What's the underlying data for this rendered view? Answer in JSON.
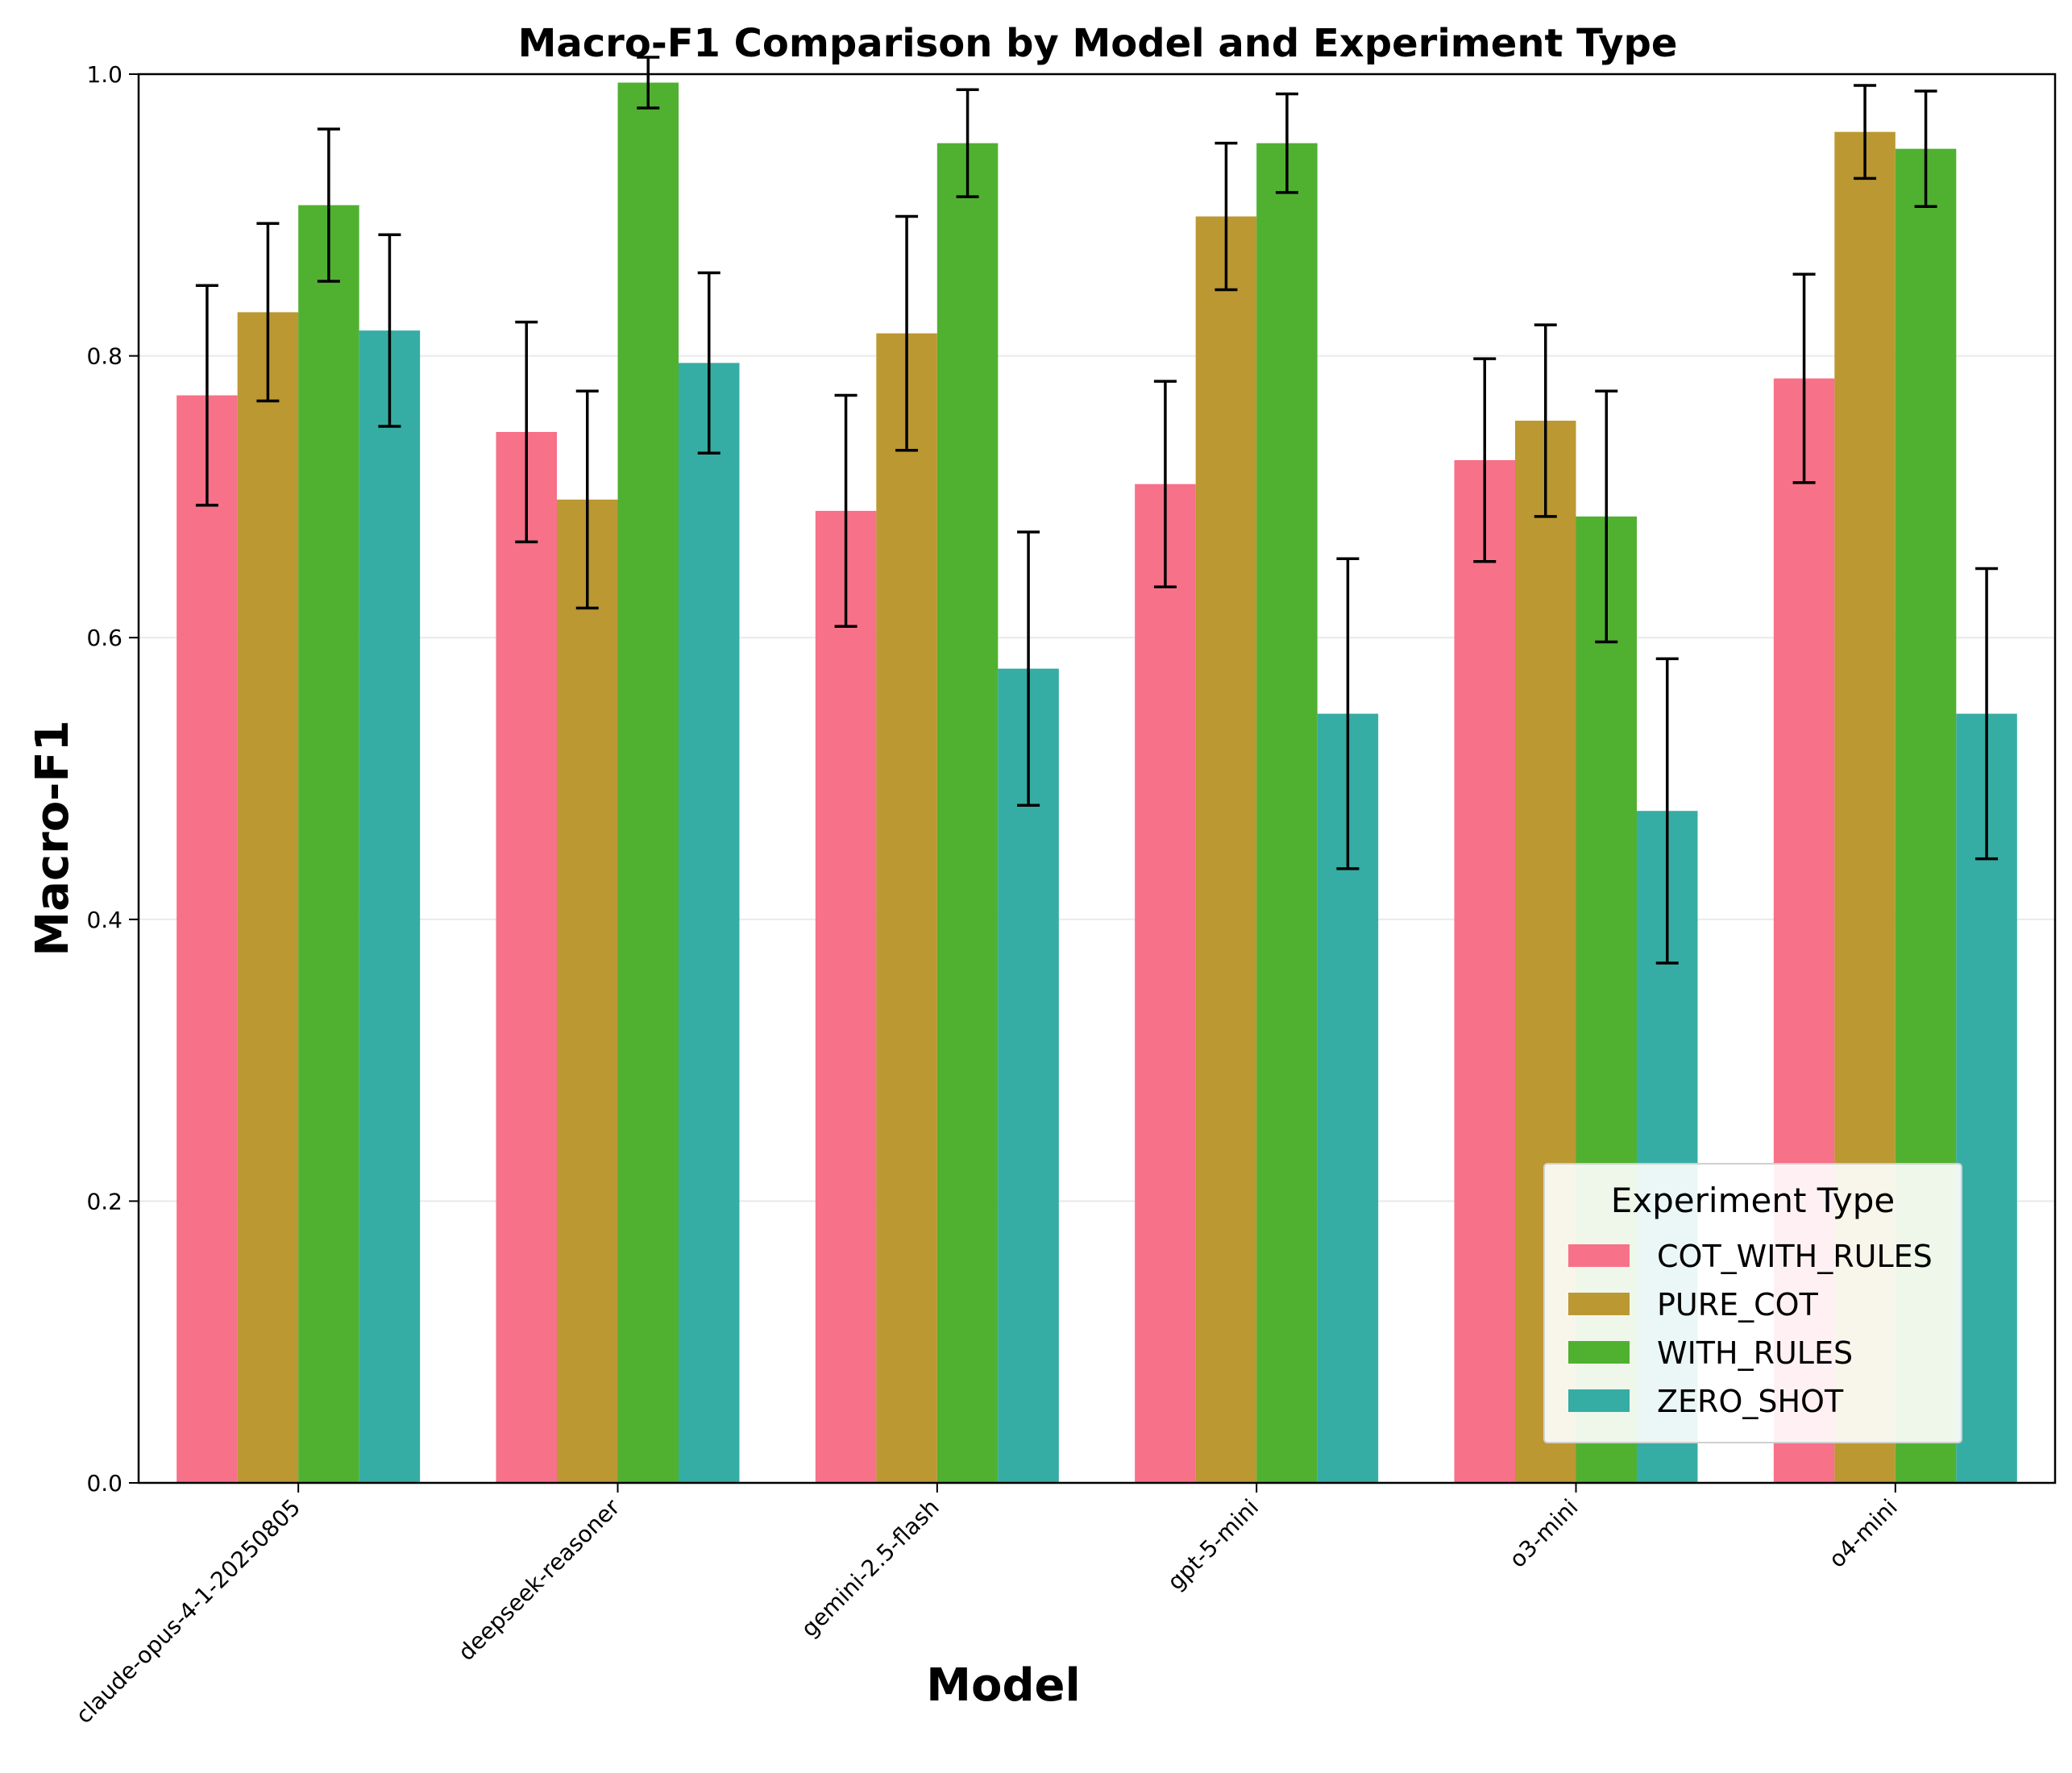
{
  "chart_data": {
    "type": "bar",
    "title": "Macro-F1 Comparison by Model and Experiment Type",
    "xlabel": "Model",
    "ylabel": "Macro-F1",
    "ylim": [
      0,
      1.0
    ],
    "yticks": [
      "0.0",
      "0.2",
      "0.4",
      "0.6",
      "0.8",
      "1.0"
    ],
    "grid": "horizontal",
    "legend_title": "Experiment Type",
    "legend_position": "lower-right",
    "categories": [
      "claude-opus-4-1-20250805",
      "deepseek-reasoner",
      "gemini-2.5-flash",
      "gpt-5-mini",
      "o3-mini",
      "o4-mini"
    ],
    "series": [
      {
        "name": "COT_WITH_RULES",
        "color": "#f77189",
        "values": [
          0.772,
          0.746,
          0.69,
          0.709,
          0.726,
          0.784
        ],
        "errors": [
          0.078,
          0.078,
          0.082,
          0.073,
          0.072,
          0.074
        ]
      },
      {
        "name": "PURE_COT",
        "color": "#bb9832",
        "values": [
          0.831,
          0.698,
          0.816,
          0.899,
          0.754,
          0.959
        ],
        "errors": [
          0.063,
          0.077,
          0.083,
          0.052,
          0.068,
          0.033
        ]
      },
      {
        "name": "WITH_RULES",
        "color": "#50b131",
        "values": [
          0.907,
          0.994,
          0.951,
          0.951,
          0.686,
          0.947
        ],
        "errors": [
          0.054,
          0.018,
          0.038,
          0.035,
          0.089,
          0.041
        ]
      },
      {
        "name": "ZERO_SHOT",
        "color": "#36ada4",
        "values": [
          0.818,
          0.795,
          0.578,
          0.546,
          0.477,
          0.546
        ],
        "errors": [
          0.068,
          0.064,
          0.097,
          0.11,
          0.108,
          0.103
        ]
      }
    ]
  }
}
